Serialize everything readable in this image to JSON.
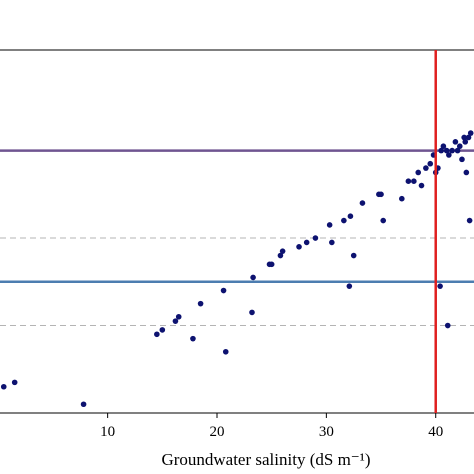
{
  "chart_data": {
    "type": "scatter",
    "title": "",
    "xlabel": "Groundwater salinity (dS m⁻¹)",
    "ylabel": "",
    "xlim": [
      -0.3,
      43.5
    ],
    "ylim": [
      0,
      8.3
    ],
    "xticks": [
      10,
      20,
      30,
      40
    ],
    "xtick_labels": [
      "10",
      "20",
      "30",
      "40"
    ],
    "grid": false,
    "legend": "none",
    "marker_color": "#0d1270",
    "series": [
      {
        "values": [
          {
            "x": 0.5,
            "y": 0.6
          },
          {
            "x": 1.5,
            "y": 0.7
          },
          {
            "x": 7.8,
            "y": 0.2
          },
          {
            "x": 14.5,
            "y": 1.8
          },
          {
            "x": 15.0,
            "y": 1.9
          },
          {
            "x": 16.2,
            "y": 2.1
          },
          {
            "x": 16.5,
            "y": 2.2
          },
          {
            "x": 17.8,
            "y": 1.7
          },
          {
            "x": 18.5,
            "y": 2.5
          },
          {
            "x": 20.6,
            "y": 2.8
          },
          {
            "x": 20.8,
            "y": 1.4
          },
          {
            "x": 23.2,
            "y": 2.3
          },
          {
            "x": 23.3,
            "y": 3.1
          },
          {
            "x": 24.8,
            "y": 3.4
          },
          {
            "x": 25.0,
            "y": 3.4
          },
          {
            "x": 25.8,
            "y": 3.6
          },
          {
            "x": 26.0,
            "y": 3.7
          },
          {
            "x": 27.5,
            "y": 3.8
          },
          {
            "x": 28.2,
            "y": 3.9
          },
          {
            "x": 29.0,
            "y": 4.0
          },
          {
            "x": 30.3,
            "y": 4.3
          },
          {
            "x": 30.5,
            "y": 3.9
          },
          {
            "x": 31.6,
            "y": 4.4
          },
          {
            "x": 32.1,
            "y": 2.9
          },
          {
            "x": 32.2,
            "y": 4.5
          },
          {
            "x": 32.5,
            "y": 3.6
          },
          {
            "x": 33.3,
            "y": 4.8
          },
          {
            "x": 34.8,
            "y": 5.0
          },
          {
            "x": 35.0,
            "y": 5.0
          },
          {
            "x": 35.2,
            "y": 4.4
          },
          {
            "x": 36.9,
            "y": 4.9
          },
          {
            "x": 37.5,
            "y": 5.3
          },
          {
            "x": 38.0,
            "y": 5.3
          },
          {
            "x": 38.4,
            "y": 5.5
          },
          {
            "x": 38.7,
            "y": 5.2
          },
          {
            "x": 39.1,
            "y": 5.6
          },
          {
            "x": 39.5,
            "y": 5.7
          },
          {
            "x": 39.8,
            "y": 5.9
          },
          {
            "x": 40.0,
            "y": 5.5
          },
          {
            "x": 40.2,
            "y": 5.6
          },
          {
            "x": 40.4,
            "y": 2.9
          },
          {
            "x": 40.5,
            "y": 6.0
          },
          {
            "x": 40.7,
            "y": 6.1
          },
          {
            "x": 41.0,
            "y": 6.0
          },
          {
            "x": 41.1,
            "y": 2.0
          },
          {
            "x": 41.2,
            "y": 5.9
          },
          {
            "x": 41.5,
            "y": 6.0
          },
          {
            "x": 41.8,
            "y": 6.2
          },
          {
            "x": 42.0,
            "y": 6.0
          },
          {
            "x": 42.2,
            "y": 6.1
          },
          {
            "x": 42.4,
            "y": 5.8
          },
          {
            "x": 42.6,
            "y": 6.3
          },
          {
            "x": 42.7,
            "y": 6.2
          },
          {
            "x": 42.8,
            "y": 5.5
          },
          {
            "x": 43.0,
            "y": 6.3
          },
          {
            "x": 43.1,
            "y": 4.4
          },
          {
            "x": 43.2,
            "y": 6.4
          }
        ]
      }
    ],
    "reference_lines": [
      {
        "orientation": "horizontal",
        "y": 6.0,
        "color": "#6f5591",
        "style": "solid"
      },
      {
        "orientation": "horizontal",
        "y": 4.0,
        "color": "#b4b4b4",
        "style": "dashed"
      },
      {
        "orientation": "horizontal",
        "y": 3.0,
        "color": "#4c7db0",
        "style": "solid"
      },
      {
        "orientation": "horizontal",
        "y": 2.0,
        "color": "#b4b4b4",
        "style": "dashed"
      },
      {
        "orientation": "vertical",
        "x": 40,
        "color": "#e02020",
        "style": "solid"
      }
    ]
  }
}
